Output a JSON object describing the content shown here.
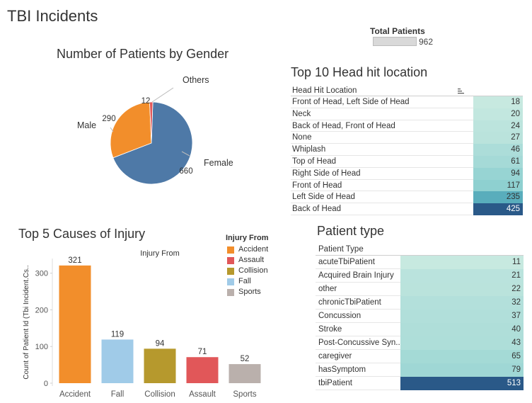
{
  "dashboard": {
    "title": "TBI Incidents",
    "total_patients_label": "Total Patients",
    "total_patients_value": "962"
  },
  "gender_chart": {
    "title": "Number of Patients by Gender",
    "chart_data": {
      "type": "pie",
      "slices": [
        {
          "label": "Female",
          "value": 660,
          "color": "#4e79a7"
        },
        {
          "label": "Male",
          "value": 290,
          "color": "#f28e2b"
        },
        {
          "label": "Others",
          "value": 12,
          "color": "#e15759"
        }
      ]
    }
  },
  "head_hit": {
    "title": "Top 10 Head hit location",
    "column_header": "Head Hit Location",
    "sort_icon": "sort-icon",
    "rows": [
      {
        "label": "Front of Head, Left Side of Head",
        "value": 18
      },
      {
        "label": "Neck",
        "value": 20
      },
      {
        "label": "Back of Head, Front of Head",
        "value": 24
      },
      {
        "label": "None",
        "value": 27
      },
      {
        "label": "Whiplash",
        "value": 46
      },
      {
        "label": "Top of Head",
        "value": 61
      },
      {
        "label": "Right Side of Head",
        "value": 94
      },
      {
        "label": "Front of Head",
        "value": 117
      },
      {
        "label": "Left Side of Head",
        "value": 235
      },
      {
        "label": "Back of Head",
        "value": 425
      }
    ]
  },
  "causes_chart": {
    "title": "Top 5 Causes of Injury",
    "chart_data": {
      "type": "bar",
      "categories": [
        "Accident",
        "Fall",
        "Collision",
        "Assault",
        "Sports"
      ],
      "values": [
        321,
        119,
        94,
        71,
        52
      ],
      "colors": [
        "#f28e2b",
        "#a0cbe8",
        "#b6992d",
        "#e15759",
        "#bab0ac"
      ],
      "title": "Injury From",
      "xlabel": "",
      "ylabel": "Count of Patient Id (Tbi Incident.Cs..",
      "ylim": [
        0,
        340
      ],
      "yticks": [
        0,
        100,
        200,
        300
      ]
    },
    "legend": {
      "title": "Injury From",
      "items": [
        {
          "label": "Accident",
          "color": "#f28e2b"
        },
        {
          "label": "Assault",
          "color": "#e15759"
        },
        {
          "label": "Collision",
          "color": "#b6992d"
        },
        {
          "label": "Fall",
          "color": "#a0cbe8"
        },
        {
          "label": "Sports",
          "color": "#bab0ac"
        }
      ]
    }
  },
  "patient_type": {
    "title": "Patient type",
    "column_header": "Patient Type",
    "rows": [
      {
        "label": "acuteTbiPatient",
        "value": 11
      },
      {
        "label": "Acquired Brain Injury",
        "value": 21
      },
      {
        "label": "other",
        "value": 22
      },
      {
        "label": "chronicTbiPatient",
        "value": 32
      },
      {
        "label": "Concussion",
        "value": 37
      },
      {
        "label": "Stroke",
        "value": 40
      },
      {
        "label": "Post-Concussive Syn..",
        "value": 43
      },
      {
        "label": "caregiver",
        "value": 65
      },
      {
        "label": "hasSymptom",
        "value": 79
      },
      {
        "label": "tbiPatient",
        "value": 513
      }
    ]
  }
}
